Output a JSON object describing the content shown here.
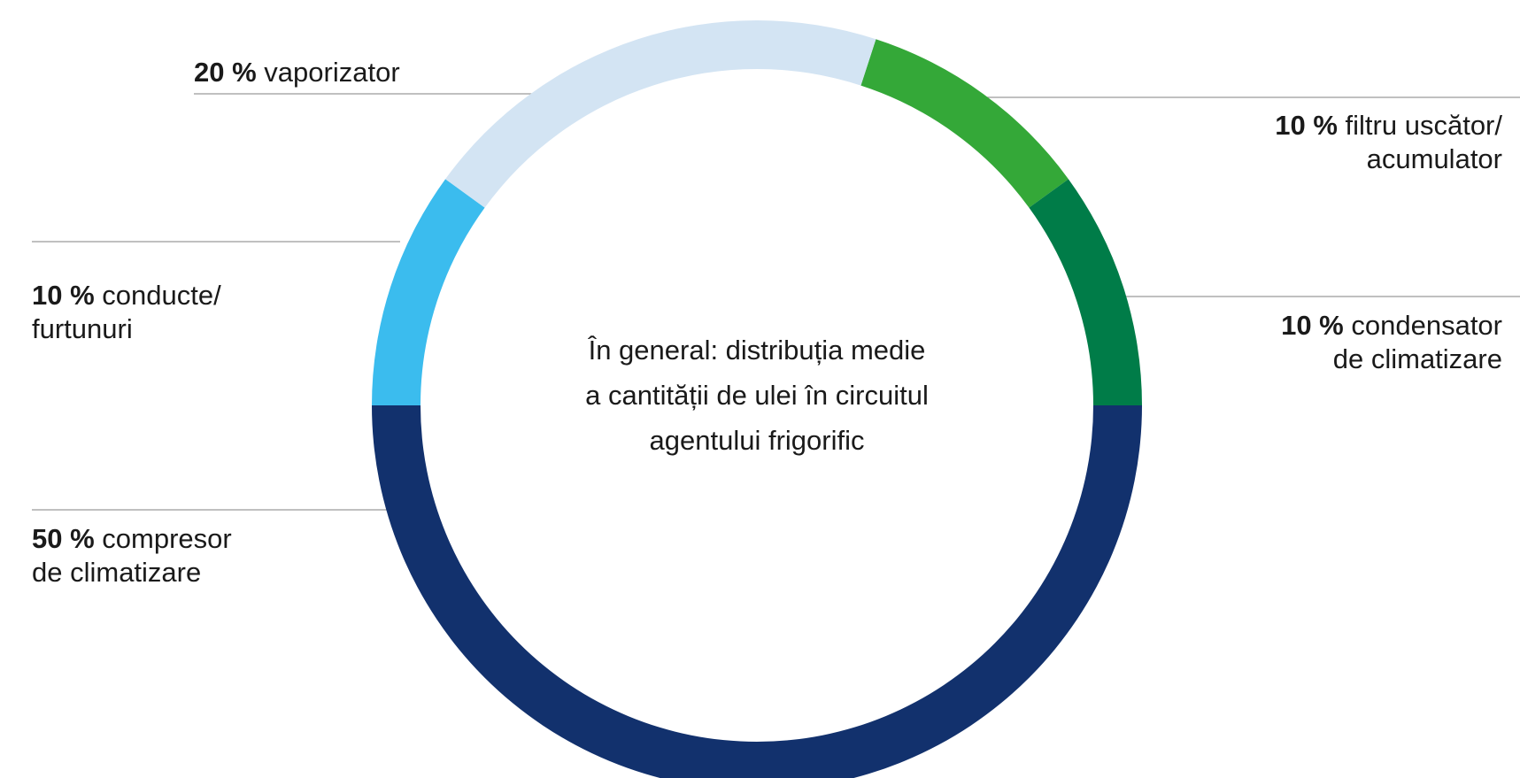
{
  "chart_data": {
    "type": "pie",
    "style": "donut",
    "center_text": [
      "În general: distribuția medie",
      "a cantității de ulei în circuitul",
      "agentului frigorific"
    ],
    "slices": [
      {
        "label": "filtru uscător/ acumulator",
        "value": 10,
        "pct_text": "10 %",
        "line1": "filtru uscător/",
        "line2": "acumulator",
        "color": "#34a838"
      },
      {
        "label": "condensator de climatizare",
        "value": 10,
        "pct_text": "10 %",
        "line1": "condensator",
        "line2": "de climatizare",
        "color": "#007c48"
      },
      {
        "label": "compresor de climatizare",
        "value": 50,
        "pct_text": "50 %",
        "line1": "compresor",
        "line2": "de climatizare",
        "color": "#12316d"
      },
      {
        "label": "conducte/ furtunuri",
        "value": 10,
        "pct_text": "10 %",
        "line1": "conducte/",
        "line2": "furtunuri",
        "color": "#3bbcee"
      },
      {
        "label": "vaporizator",
        "value": 20,
        "pct_text": "20 %",
        "line1": "vaporizator",
        "line2": "",
        "color": "#d3e4f3"
      }
    ]
  }
}
